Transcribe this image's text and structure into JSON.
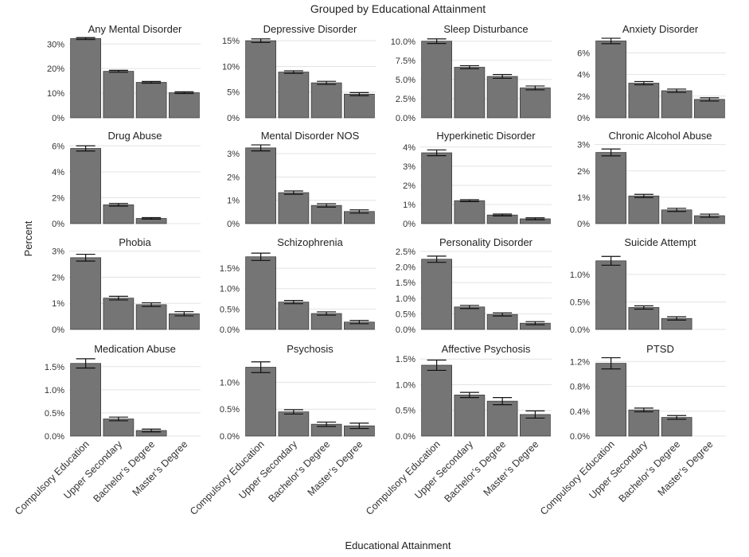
{
  "figure": {
    "title": "Grouped by Educational Attainment",
    "xlabel": "Educational Attainment",
    "ylabel": "Percent",
    "bar_color": "#757575"
  },
  "chart_data": [
    {
      "type": "bar",
      "title": "Any Mental Disorder",
      "categories": [
        "Compulsory Education",
        "Upper Secondary",
        "Bachelor’s Degree",
        "Master’s Degree"
      ],
      "values": [
        32.2,
        18.9,
        14.4,
        10.2
      ],
      "err": [
        0.4,
        0.4,
        0.35,
        0.35
      ],
      "ylim": [
        0,
        33
      ],
      "yticks": [
        0,
        10,
        20,
        30
      ],
      "ytick_labels": [
        "0%",
        "10%",
        "20%",
        "30%"
      ]
    },
    {
      "type": "bar",
      "title": "Depressive Disorder",
      "categories": [
        "Compulsory Education",
        "Upper Secondary",
        "Bachelor’s Degree",
        "Master’s Degree"
      ],
      "values": [
        15.0,
        8.9,
        6.8,
        4.6
      ],
      "err": [
        0.35,
        0.25,
        0.3,
        0.3
      ],
      "ylim": [
        0,
        15.8
      ],
      "yticks": [
        0,
        5,
        10,
        15
      ],
      "ytick_labels": [
        "0%",
        "5%",
        "10%",
        "15%"
      ]
    },
    {
      "type": "bar",
      "title": "Sleep Disturbance",
      "categories": [
        "Compulsory Education",
        "Upper Secondary",
        "Bachelor’s Degree",
        "Master’s Degree"
      ],
      "values": [
        10.0,
        6.6,
        5.4,
        3.9
      ],
      "err": [
        0.3,
        0.2,
        0.25,
        0.25
      ],
      "ylim": [
        0,
        10.6
      ],
      "yticks": [
        0,
        2.5,
        5,
        7.5,
        10
      ],
      "ytick_labels": [
        "0.0%",
        "2.5%",
        "5.0%",
        "7.5%",
        "10.0%"
      ]
    },
    {
      "type": "bar",
      "title": "Anxiety Disorder",
      "categories": [
        "Compulsory Education",
        "Upper Secondary",
        "Bachelor’s Degree",
        "Master’s Degree"
      ],
      "values": [
        7.1,
        3.2,
        2.5,
        1.7
      ],
      "err": [
        0.25,
        0.15,
        0.15,
        0.15
      ],
      "ylim": [
        0,
        7.5
      ],
      "yticks": [
        0,
        2,
        4,
        6
      ],
      "ytick_labels": [
        "0%",
        "2%",
        "4%",
        "6%"
      ]
    },
    {
      "type": "bar",
      "title": "Drug Abuse",
      "categories": [
        "Compulsory Education",
        "Upper Secondary",
        "Bachelor’s Degree",
        "Master’s Degree"
      ],
      "values": [
        5.8,
        1.45,
        0.4,
        null
      ],
      "err": [
        0.2,
        0.1,
        0.06,
        null
      ],
      "ylim": [
        0,
        6.2
      ],
      "yticks": [
        0,
        2,
        4,
        6
      ],
      "ytick_labels": [
        "0%",
        "2%",
        "4%",
        "6%"
      ]
    },
    {
      "type": "bar",
      "title": "Mental Disorder NOS",
      "categories": [
        "Compulsory Education",
        "Upper Secondary",
        "Bachelor’s Degree",
        "Master’s Degree"
      ],
      "values": [
        3.25,
        1.33,
        0.78,
        0.52
      ],
      "err": [
        0.13,
        0.07,
        0.07,
        0.07
      ],
      "ylim": [
        0,
        3.45
      ],
      "yticks": [
        0,
        1,
        2,
        3
      ],
      "ytick_labels": [
        "0%",
        "1%",
        "2%",
        "3%"
      ]
    },
    {
      "type": "bar",
      "title": "Hyperkinetic Disorder",
      "categories": [
        "Compulsory Education",
        "Upper Secondary",
        "Bachelor’s Degree",
        "Master’s Degree"
      ],
      "values": [
        3.7,
        1.2,
        0.45,
        0.25
      ],
      "err": [
        0.15,
        0.05,
        0.05,
        0.05
      ],
      "ylim": [
        0,
        4.2
      ],
      "yticks": [
        0,
        1,
        2,
        3,
        4
      ],
      "ytick_labels": [
        "0%",
        "1%",
        "2%",
        "3%",
        "4%"
      ]
    },
    {
      "type": "bar",
      "title": "Chronic Alcohol Abuse",
      "categories": [
        "Compulsory Education",
        "Upper Secondary",
        "Bachelor’s Degree",
        "Master’s Degree"
      ],
      "values": [
        2.7,
        1.05,
        0.52,
        0.3
      ],
      "err": [
        0.13,
        0.06,
        0.06,
        0.06
      ],
      "ylim": [
        0,
        3.05
      ],
      "yticks": [
        0,
        1,
        2,
        3
      ],
      "ytick_labels": [
        "0%",
        "1%",
        "2%",
        "3%"
      ]
    },
    {
      "type": "bar",
      "title": "Phobia",
      "categories": [
        "Compulsory Education",
        "Upper Secondary",
        "Bachelor’s Degree",
        "Master’s Degree"
      ],
      "values": [
        2.75,
        1.2,
        0.95,
        0.6
      ],
      "err": [
        0.13,
        0.07,
        0.07,
        0.08
      ],
      "ylim": [
        0,
        3.05
      ],
      "yticks": [
        0,
        1,
        2,
        3
      ],
      "ytick_labels": [
        "0%",
        "1%",
        "2%",
        "3%"
      ]
    },
    {
      "type": "bar",
      "title": "Schizophrenia",
      "categories": [
        "Compulsory Education",
        "Upper Secondary",
        "Bachelor’s Degree",
        "Master’s Degree"
      ],
      "values": [
        1.78,
        0.67,
        0.39,
        0.18
      ],
      "err": [
        0.09,
        0.04,
        0.04,
        0.04
      ],
      "ylim": [
        0,
        1.95
      ],
      "yticks": [
        0,
        0.5,
        1,
        1.5
      ],
      "ytick_labels": [
        "0.0%",
        "0.5%",
        "1.0%",
        "1.5%"
      ]
    },
    {
      "type": "bar",
      "title": "Personality Disorder",
      "categories": [
        "Compulsory Education",
        "Upper Secondary",
        "Bachelor’s Degree",
        "Master’s Degree"
      ],
      "values": [
        2.25,
        0.72,
        0.48,
        0.2
      ],
      "err": [
        0.1,
        0.05,
        0.05,
        0.05
      ],
      "ylim": [
        0,
        2.55
      ],
      "yticks": [
        0,
        0.5,
        1,
        1.5,
        2,
        2.5
      ],
      "ytick_labels": [
        "0.0%",
        "0.5%",
        "1.0%",
        "1.5%",
        "2.0%",
        "2.5%"
      ]
    },
    {
      "type": "bar",
      "title": "Suicide Attempt",
      "categories": [
        "Compulsory Education",
        "Upper Secondary",
        "Bachelor’s Degree",
        "Master’s Degree"
      ],
      "values": [
        1.25,
        0.4,
        0.2,
        null
      ],
      "err": [
        0.08,
        0.03,
        0.03,
        null
      ],
      "ylim": [
        0,
        1.45
      ],
      "yticks": [
        0,
        0.5,
        1
      ],
      "ytick_labels": [
        "0.0%",
        "0.5%",
        "1.0%"
      ]
    },
    {
      "type": "bar",
      "title": "Medication Abuse",
      "categories": [
        "Compulsory Education",
        "Upper Secondary",
        "Bachelor’s Degree",
        "Master’s Degree"
      ],
      "values": [
        1.57,
        0.37,
        0.12,
        null
      ],
      "err": [
        0.1,
        0.04,
        0.03,
        null
      ],
      "ylim": [
        0,
        1.72
      ],
      "yticks": [
        0,
        0.5,
        1,
        1.5
      ],
      "ytick_labels": [
        "0.0%",
        "0.5%",
        "1.0%",
        "1.5%"
      ]
    },
    {
      "type": "bar",
      "title": "Psychosis",
      "categories": [
        "Compulsory Education",
        "Upper Secondary",
        "Bachelor’s Degree",
        "Master’s Degree"
      ],
      "values": [
        1.28,
        0.45,
        0.22,
        0.19
      ],
      "err": [
        0.1,
        0.04,
        0.04,
        0.05
      ],
      "ylim": [
        0,
        1.48
      ],
      "yticks": [
        0,
        0.5,
        1
      ],
      "ytick_labels": [
        "0.0%",
        "0.5%",
        "1.0%"
      ]
    },
    {
      "type": "bar",
      "title": "Affective Psychosis",
      "categories": [
        "Compulsory Education",
        "Upper Secondary",
        "Bachelor’s Degree",
        "Master’s Degree"
      ],
      "values": [
        1.38,
        0.8,
        0.68,
        0.42
      ],
      "err": [
        0.1,
        0.05,
        0.07,
        0.07
      ],
      "ylim": [
        0,
        1.55
      ],
      "yticks": [
        0,
        0.5,
        1,
        1.5
      ],
      "ytick_labels": [
        "0.0%",
        "0.5%",
        "1.0%",
        "1.5%"
      ]
    },
    {
      "type": "bar",
      "title": "PTSD",
      "categories": [
        "Compulsory Education",
        "Upper Secondary",
        "Bachelor’s Degree",
        "Master’s Degree"
      ],
      "values": [
        1.17,
        0.42,
        0.3,
        null
      ],
      "err": [
        0.09,
        0.03,
        0.03,
        null
      ],
      "ylim": [
        0,
        1.28
      ],
      "yticks": [
        0,
        0.4,
        0.8,
        1.2
      ],
      "ytick_labels": [
        "0.0%",
        "0.4%",
        "0.8%",
        "1.2%"
      ]
    }
  ]
}
